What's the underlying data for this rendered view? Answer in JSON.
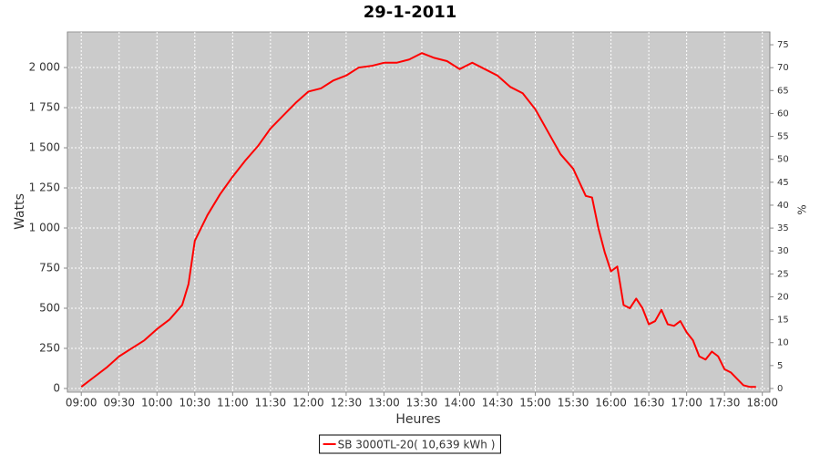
{
  "chart_data": {
    "type": "line",
    "title": "29-1-2011",
    "ylabel": "Watts",
    "y2label": "%",
    "xlabel": "Heures",
    "x": [
      "09:00",
      "09:10",
      "09:20",
      "09:30",
      "09:40",
      "09:50",
      "10:00",
      "10:10",
      "10:20",
      "10:25",
      "10:30",
      "10:40",
      "10:50",
      "11:00",
      "11:10",
      "11:20",
      "11:30",
      "11:40",
      "11:50",
      "12:00",
      "12:10",
      "12:20",
      "12:30",
      "12:40",
      "12:50",
      "13:00",
      "13:10",
      "13:20",
      "13:30",
      "13:40",
      "13:50",
      "14:00",
      "14:10",
      "14:20",
      "14:30",
      "14:40",
      "14:50",
      "15:00",
      "15:10",
      "15:20",
      "15:30",
      "15:40",
      "15:45",
      "15:50",
      "15:55",
      "16:00",
      "16:05",
      "16:10",
      "16:15",
      "16:20",
      "16:25",
      "16:30",
      "16:35",
      "16:40",
      "16:45",
      "16:50",
      "16:55",
      "17:00",
      "17:05",
      "17:10",
      "17:15",
      "17:20",
      "17:25",
      "17:30",
      "17:35",
      "17:40",
      "17:45",
      "17:50",
      "17:55"
    ],
    "series": [
      {
        "name": "SB 3000TL-20( 10,639 kWh )",
        "color": "#ff0000",
        "values": [
          10,
          70,
          130,
          200,
          250,
          300,
          370,
          430,
          520,
          650,
          920,
          1080,
          1210,
          1320,
          1420,
          1510,
          1620,
          1700,
          1780,
          1850,
          1870,
          1920,
          1950,
          2000,
          2010,
          2030,
          2030,
          2050,
          2090,
          2060,
          2040,
          1990,
          2030,
          1990,
          1950,
          1880,
          1840,
          1740,
          1600,
          1460,
          1370,
          1200,
          1190,
          1000,
          850,
          730,
          760,
          520,
          500,
          560,
          500,
          400,
          420,
          490,
          400,
          390,
          420,
          350,
          300,
          200,
          180,
          230,
          200,
          120,
          100,
          60,
          20,
          10,
          10
        ]
      }
    ],
    "xlim": [
      "08:49",
      "18:06"
    ],
    "xticks": [
      "09:00",
      "09:30",
      "10:00",
      "10:30",
      "11:00",
      "11:30",
      "12:00",
      "12:30",
      "13:00",
      "13:30",
      "14:00",
      "14:30",
      "15:00",
      "15:30",
      "16:00",
      "16:30",
      "17:00",
      "17:30",
      "18:00"
    ],
    "ylim": [
      -23,
      2222
    ],
    "yticks": [
      0,
      250,
      500,
      750,
      {
        "value": 1000,
        "label": "1 000"
      },
      {
        "value": 1250,
        "label": "1 250"
      },
      {
        "value": 1500,
        "label": "1 500"
      },
      {
        "value": 1750,
        "label": "1 750"
      },
      {
        "value": 2000,
        "label": "2 000"
      }
    ],
    "y2lim": [
      -0.8,
      77.8
    ],
    "y2ticks": [
      0,
      5,
      10,
      15,
      20,
      25,
      30,
      35,
      40,
      45,
      50,
      55,
      60,
      65,
      70,
      75
    ],
    "grid": true
  }
}
